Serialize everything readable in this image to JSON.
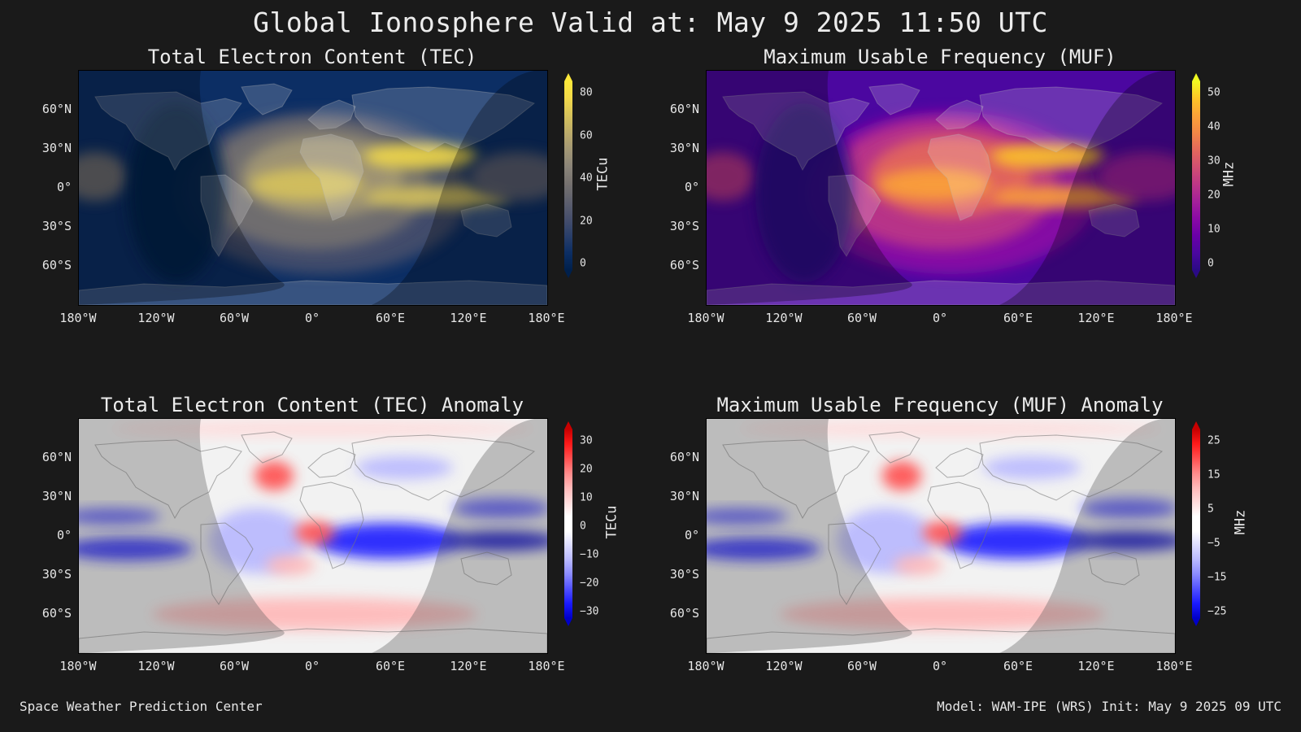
{
  "title": "Global Ionosphere Valid at: May 9 2025 11:50 UTC",
  "footer": {
    "left": "Space Weather Prediction Center",
    "right": "Model: WAM-IPE (WRS) Init: May 9 2025 09 UTC"
  },
  "axes": {
    "yticks": [
      "60°N",
      "30°N",
      "0°",
      "30°S",
      "60°S"
    ],
    "xticks": [
      "180°W",
      "120°W",
      "60°W",
      "0°",
      "60°E",
      "120°E",
      "180°E"
    ]
  },
  "colors": {
    "background": "#1a1a1a",
    "text": "#e8e8e8"
  },
  "panels": [
    {
      "title": "Total Electron Content (TEC)",
      "colorbar_label": "TECu",
      "colorbar_ticks": [
        "80",
        "60",
        "40",
        "20",
        "0"
      ],
      "scale": "cividis",
      "anomaly": false
    },
    {
      "title": "Maximum Usable Frequency (MUF)",
      "colorbar_label": "MHz",
      "colorbar_ticks": [
        "50",
        "40",
        "30",
        "20",
        "10",
        "0"
      ],
      "scale": "plasma",
      "anomaly": false
    },
    {
      "title": "Total Electron Content (TEC) Anomaly",
      "colorbar_label": "TECu",
      "colorbar_ticks": [
        "30",
        "20",
        "10",
        "0",
        "−10",
        "−20",
        "−30"
      ],
      "scale": "diverging",
      "anomaly": true
    },
    {
      "title": "Maximum Usable Frequency (MUF) Anomaly",
      "colorbar_label": "MHz",
      "colorbar_ticks": [
        "25",
        "15",
        "5",
        "−5",
        "−15",
        "−25"
      ],
      "scale": "diverging",
      "anomaly": true
    }
  ]
}
